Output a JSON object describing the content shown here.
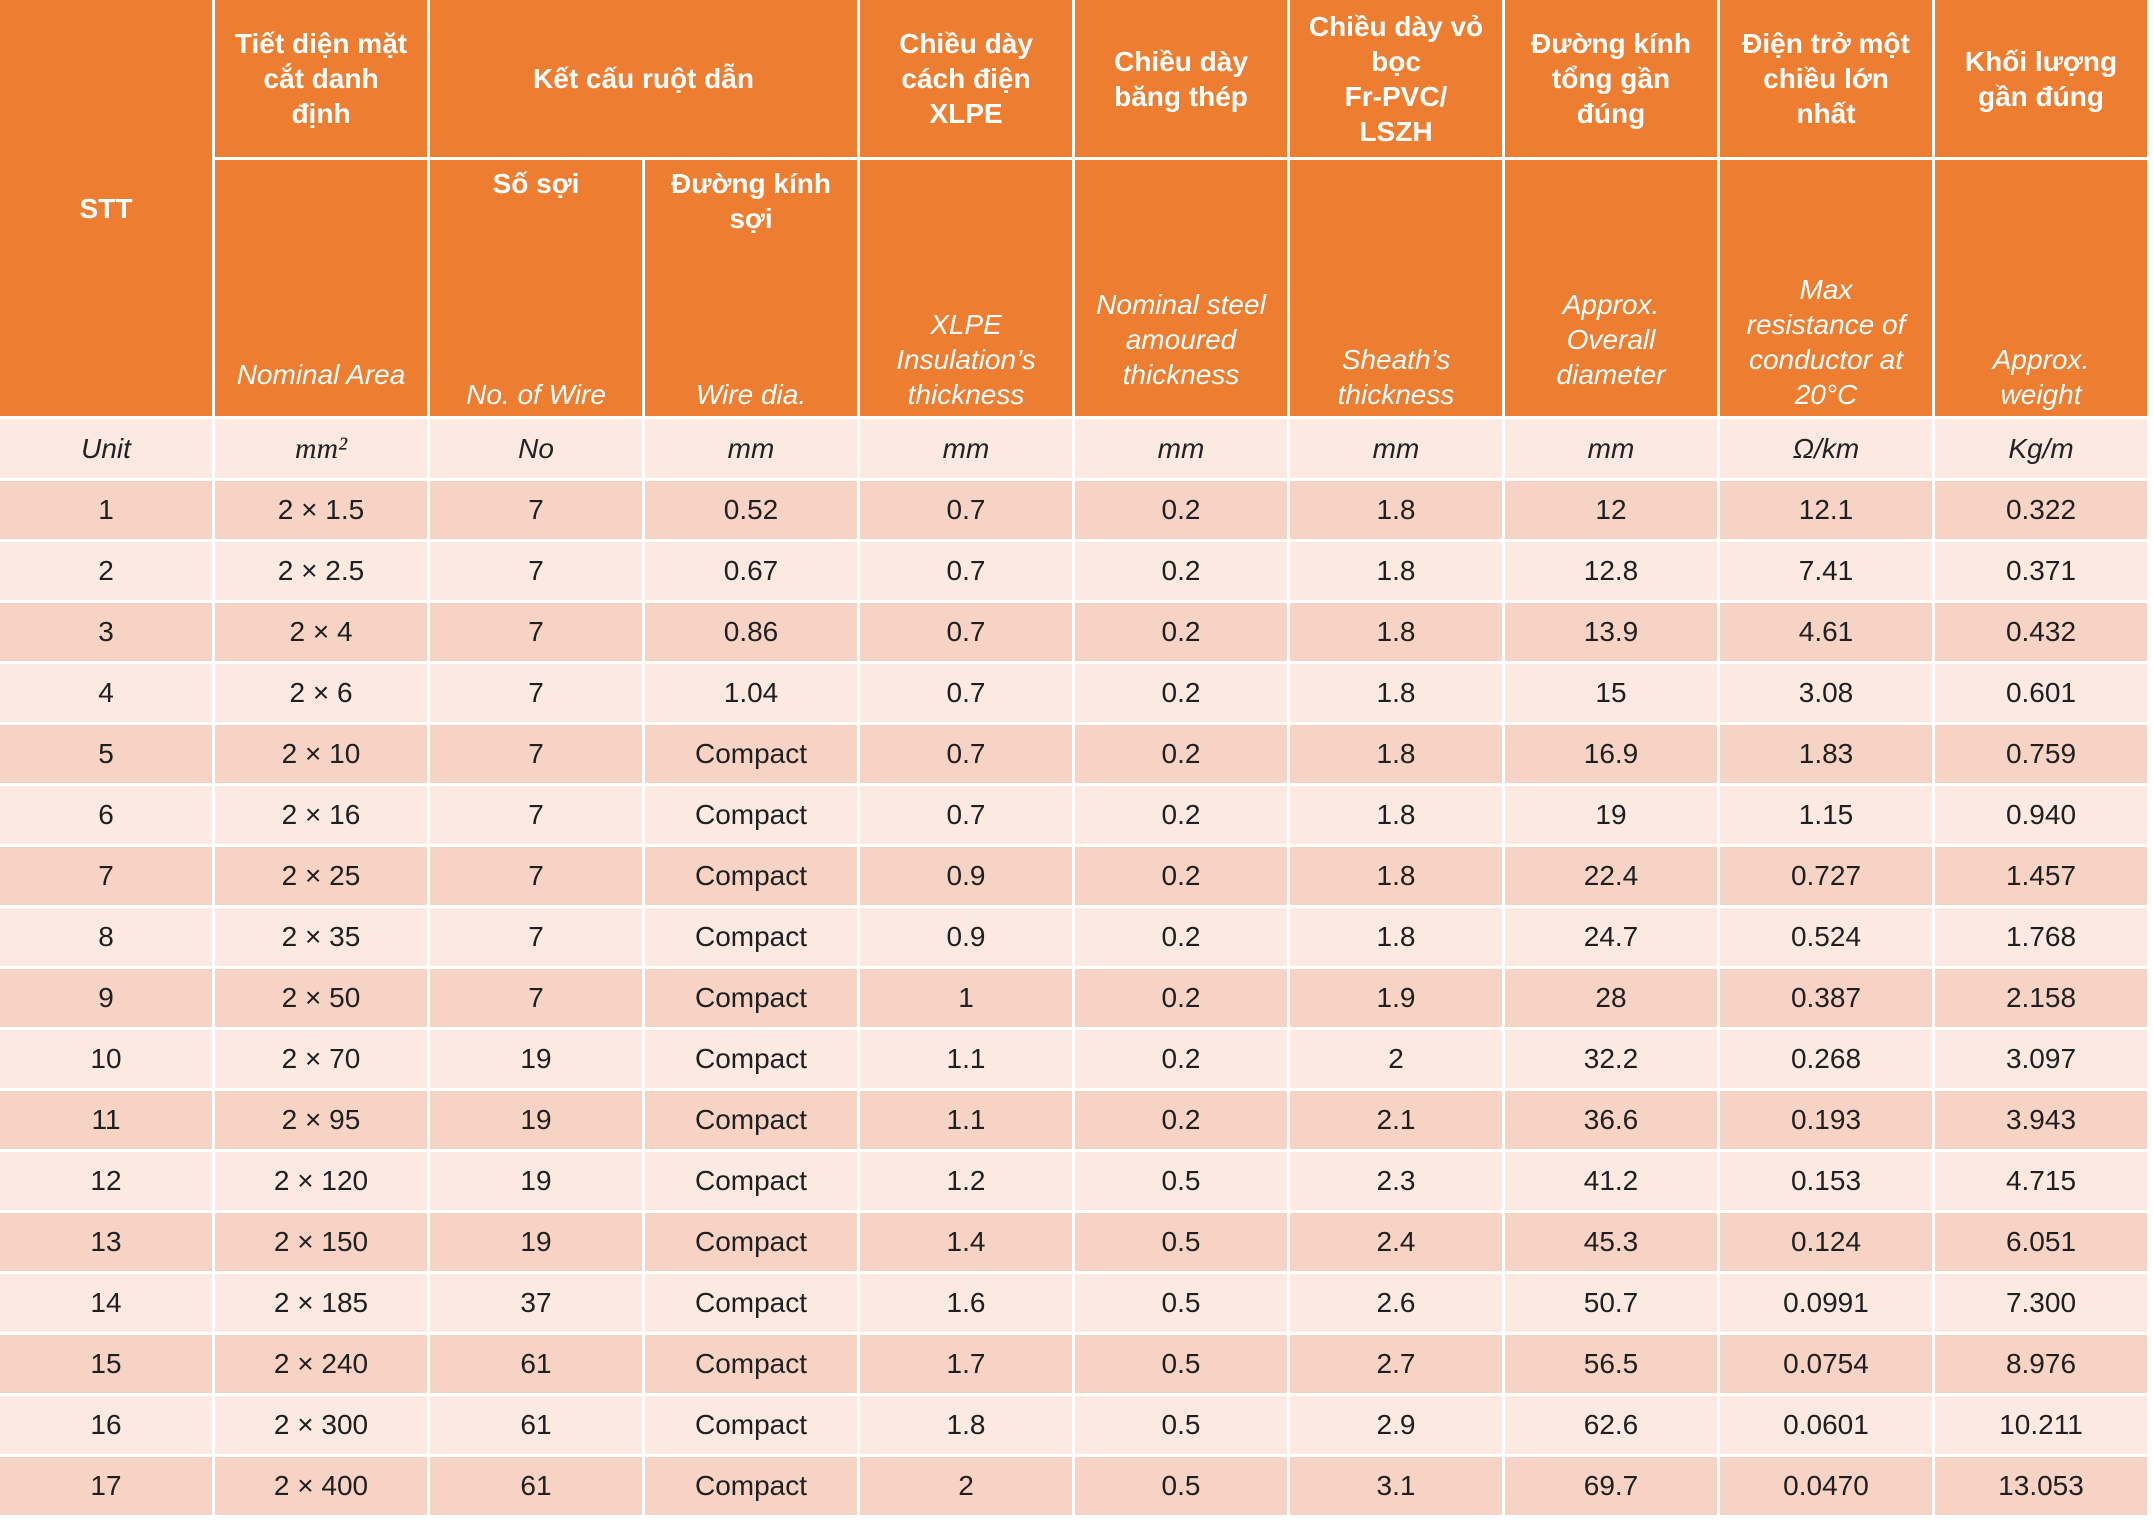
{
  "colors": {
    "header": "#ED7D31",
    "header_text": "#FFFFFF",
    "band_dark": "#F6D3C5",
    "band_light": "#FBE9E2",
    "text": "#1F1F1F"
  },
  "table": {
    "header": {
      "stt": "STT",
      "area": {
        "vi": "Tiết diện mặt cắt danh định",
        "en": "Nominal Area"
      },
      "conductor": "Kết cấu ruột dẫn",
      "wires": {
        "vi": "Số sợi",
        "en": "No. of Wire"
      },
      "wire_dia": {
        "vi": "Đường kính sợi",
        "en": "Wire dia."
      },
      "insulation": {
        "vi": "Chiều dày cách điện XLPE",
        "en": "XLPE Insulation’s thickness"
      },
      "steel_tape": {
        "vi": "Chiều dày băng thép",
        "en": "Nominal steel amoured thickness"
      },
      "sheath": {
        "vi": "Chiều dày vỏ bọc\nFr-PVC/ LSZH",
        "en": "Sheath’s thickness"
      },
      "overall_diameter": {
        "vi": "Đường kính tổng gần đúng",
        "en": "Approx. Overall diameter"
      },
      "resistance": {
        "vi": "Điện trở một chiều lớn nhất",
        "en": "Max resistance of conductor at 20°C"
      },
      "weight": {
        "vi": "Khối lượng gần đúng",
        "en": "Approx. weight"
      }
    },
    "units": [
      "Unit",
      "mm²",
      "No",
      "mm",
      "mm",
      "mm",
      "mm",
      "mm",
      "Ω/km",
      "Kg/m"
    ],
    "rows": [
      [
        "1",
        "2 × 1.5",
        "7",
        "0.52",
        "0.7",
        "0.2",
        "1.8",
        "12",
        "12.1",
        "0.322"
      ],
      [
        "2",
        "2 × 2.5",
        "7",
        "0.67",
        "0.7",
        "0.2",
        "1.8",
        "12.8",
        "7.41",
        "0.371"
      ],
      [
        "3",
        "2 × 4",
        "7",
        "0.86",
        "0.7",
        "0.2",
        "1.8",
        "13.9",
        "4.61",
        "0.432"
      ],
      [
        "4",
        "2 × 6",
        "7",
        "1.04",
        "0.7",
        "0.2",
        "1.8",
        "15",
        "3.08",
        "0.601"
      ],
      [
        "5",
        "2 × 10",
        "7",
        "Compact",
        "0.7",
        "0.2",
        "1.8",
        "16.9",
        "1.83",
        "0.759"
      ],
      [
        "6",
        "2 × 16",
        "7",
        "Compact",
        "0.7",
        "0.2",
        "1.8",
        "19",
        "1.15",
        "0.940"
      ],
      [
        "7",
        "2 × 25",
        "7",
        "Compact",
        "0.9",
        "0.2",
        "1.8",
        "22.4",
        "0.727",
        "1.457"
      ],
      [
        "8",
        "2 × 35",
        "7",
        "Compact",
        "0.9",
        "0.2",
        "1.8",
        "24.7",
        "0.524",
        "1.768"
      ],
      [
        "9",
        "2 × 50",
        "7",
        "Compact",
        "1",
        "0.2",
        "1.9",
        "28",
        "0.387",
        "2.158"
      ],
      [
        "10",
        "2 × 70",
        "19",
        "Compact",
        "1.1",
        "0.2",
        "2",
        "32.2",
        "0.268",
        "3.097"
      ],
      [
        "11",
        "2 × 95",
        "19",
        "Compact",
        "1.1",
        "0.2",
        "2.1",
        "36.6",
        "0.193",
        "3.943"
      ],
      [
        "12",
        "2 × 120",
        "19",
        "Compact",
        "1.2",
        "0.5",
        "2.3",
        "41.2",
        "0.153",
        "4.715"
      ],
      [
        "13",
        "2 × 150",
        "19",
        "Compact",
        "1.4",
        "0.5",
        "2.4",
        "45.3",
        "0.124",
        "6.051"
      ],
      [
        "14",
        "2 × 185",
        "37",
        "Compact",
        "1.6",
        "0.5",
        "2.6",
        "50.7",
        "0.0991",
        "7.300"
      ],
      [
        "15",
        "2 × 240",
        "61",
        "Compact",
        "1.7",
        "0.5",
        "2.7",
        "56.5",
        "0.0754",
        "8.976"
      ],
      [
        "16",
        "2 × 300",
        "61",
        "Compact",
        "1.8",
        "0.5",
        "2.9",
        "62.6",
        "0.0601",
        "10.211"
      ],
      [
        "17",
        "2 × 400",
        "61",
        "Compact",
        "2",
        "0.5",
        "3.1",
        "69.7",
        "0.0470",
        "13.053"
      ]
    ]
  }
}
